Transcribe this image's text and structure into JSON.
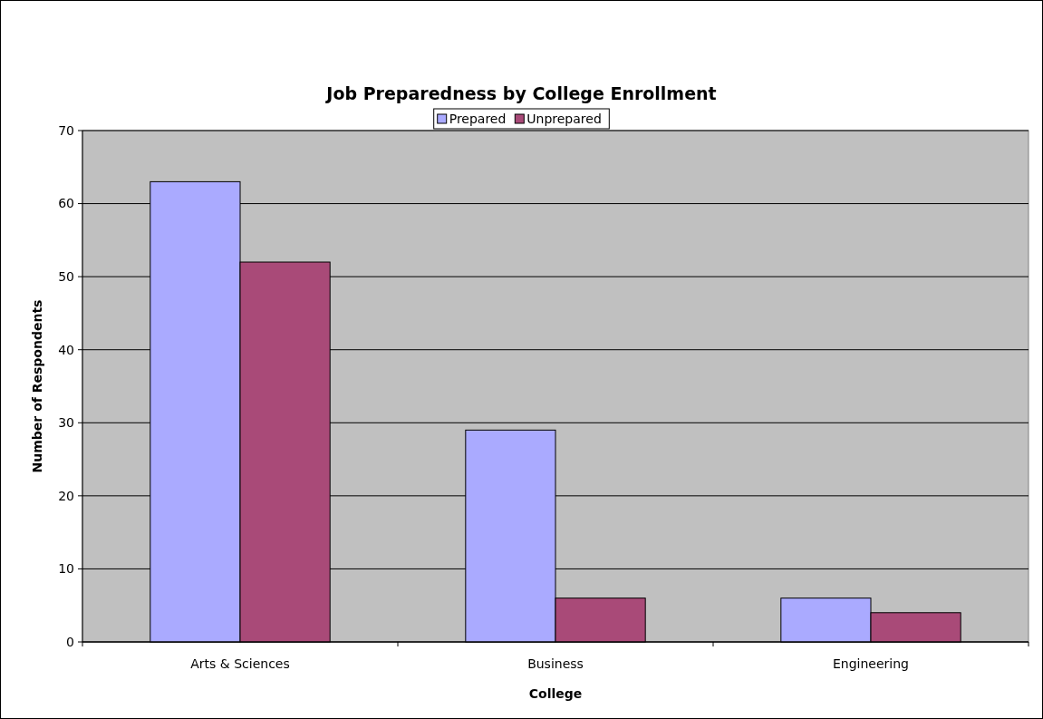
{
  "chart_data": {
    "type": "bar",
    "title": "Job Preparedness by College Enrollment",
    "xlabel": "College",
    "ylabel": "Number of Respondents",
    "categories": [
      "Arts & Sciences",
      "Business",
      "Engineering"
    ],
    "series": [
      {
        "name": "Prepared",
        "color": "#aaaaff",
        "values": [
          63,
          29,
          6
        ]
      },
      {
        "name": "Unprepared",
        "color": "#a94a78",
        "values": [
          52,
          6,
          4
        ]
      }
    ],
    "ylim": [
      0,
      70
    ],
    "yticks": [
      0,
      10,
      20,
      30,
      40,
      50,
      60,
      70
    ],
    "grid": "y",
    "legend": "top"
  }
}
